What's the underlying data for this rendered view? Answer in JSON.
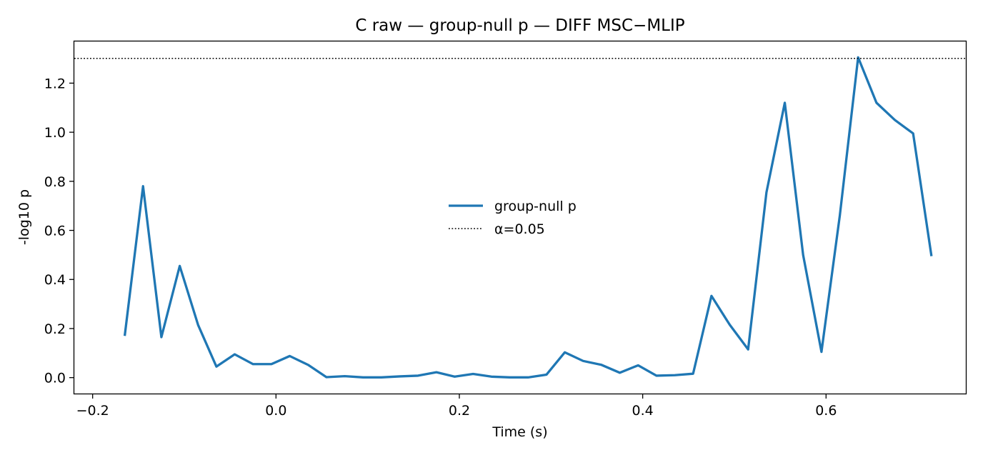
{
  "chart_data": {
    "type": "line",
    "title": "C raw — group-null p — DIFF MSC−MLIP",
    "xlabel": "Time (s)",
    "ylabel": "-log10 p",
    "xlim": [
      -0.22,
      0.7525
    ],
    "ylim": [
      -0.065,
      1.37
    ],
    "xticks": [
      -0.2,
      0.0,
      0.2,
      0.4,
      0.6
    ],
    "xtick_labels": [
      "−0.2",
      "0.0",
      "0.2",
      "0.4",
      "0.6"
    ],
    "yticks": [
      0.0,
      0.2,
      0.4,
      0.6,
      0.8,
      1.0,
      1.2
    ],
    "ytick_labels": [
      "0.0",
      "0.2",
      "0.4",
      "0.6",
      "0.8",
      "1.0",
      "1.2"
    ],
    "grid": false,
    "legend_position": "center",
    "series": [
      {
        "name": "group-null p",
        "color": "#1f77b4",
        "style": "solid",
        "x": [
          -0.165,
          -0.145,
          -0.125,
          -0.105,
          -0.085,
          -0.065,
          -0.045,
          -0.025,
          -0.005,
          0.015,
          0.035,
          0.055,
          0.075,
          0.095,
          0.115,
          0.135,
          0.155,
          0.175,
          0.195,
          0.215,
          0.235,
          0.255,
          0.275,
          0.295,
          0.315,
          0.335,
          0.355,
          0.375,
          0.395,
          0.415,
          0.435,
          0.455,
          0.475,
          0.495,
          0.515,
          0.535,
          0.555,
          0.575,
          0.595,
          0.615,
          0.635,
          0.655,
          0.675,
          0.695,
          0.715
        ],
        "y": [
          0.17,
          0.78,
          0.165,
          0.455,
          0.215,
          0.045,
          0.095,
          0.055,
          0.055,
          0.088,
          0.052,
          0.002,
          0.006,
          0.001,
          0.001,
          0.005,
          0.008,
          0.022,
          0.004,
          0.015,
          0.004,
          0.001,
          0.001,
          0.012,
          0.103,
          0.068,
          0.052,
          0.02,
          0.05,
          0.008,
          0.01,
          0.016,
          0.333,
          0.215,
          0.115,
          0.755,
          1.12,
          0.5,
          0.105,
          0.66,
          1.305,
          1.12,
          1.05,
          0.995,
          0.495
        ]
      },
      {
        "name": "α=0.05",
        "color": "#000000",
        "style": "dotted",
        "y_const": 1.301
      }
    ]
  }
}
